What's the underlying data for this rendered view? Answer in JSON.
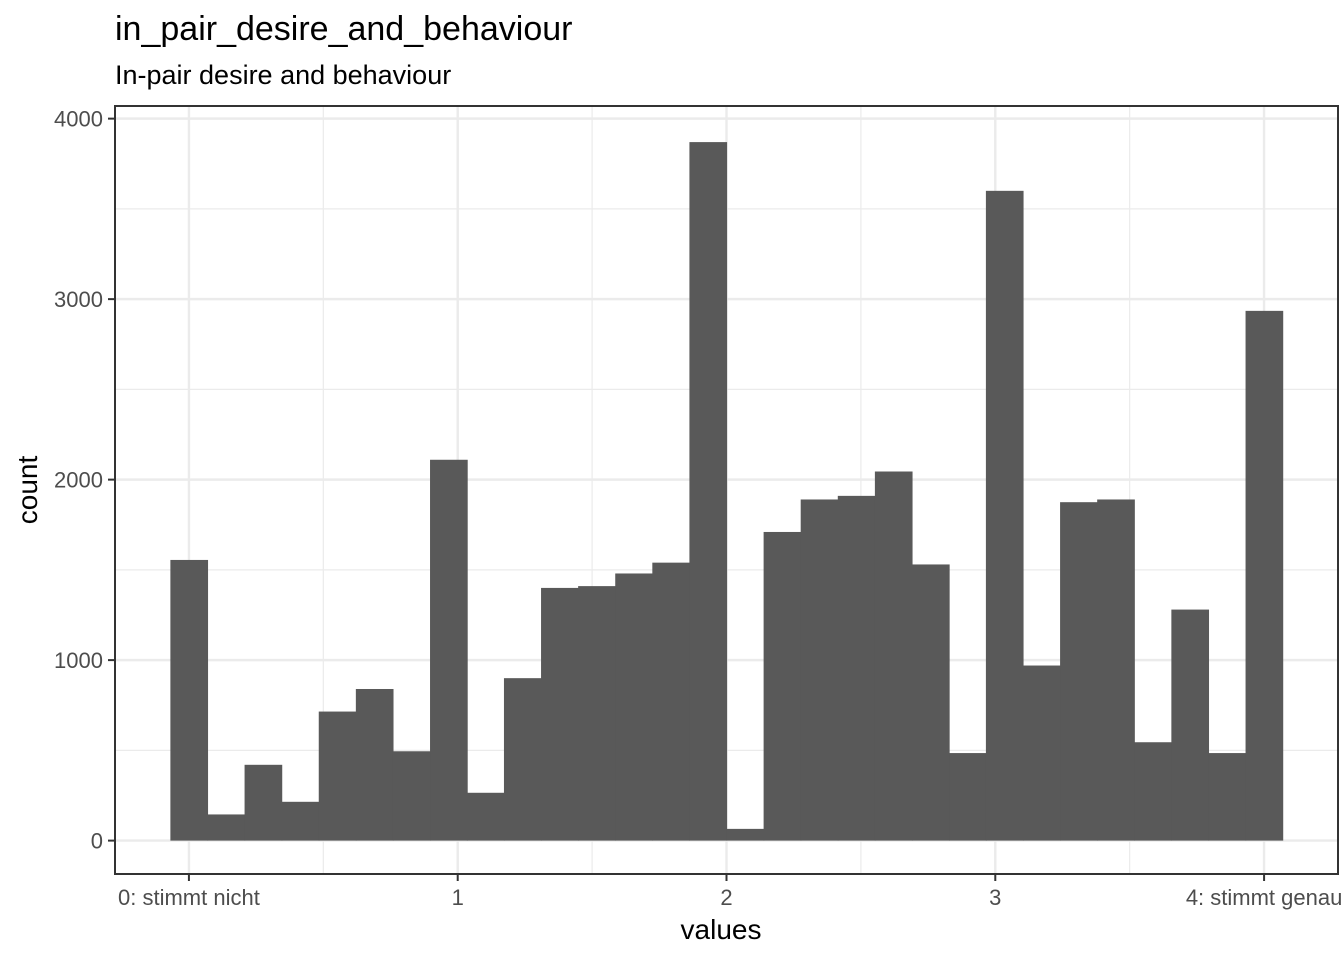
{
  "chart_data": {
    "type": "bar",
    "title": "in_pair_desire_and_behaviour",
    "subtitle": "In-pair desire and behaviour",
    "xlabel": "values",
    "ylabel": "count",
    "xlim": [
      -0.275,
      4.275
    ],
    "ylim": [
      -185,
      4070
    ],
    "x_ticks": [
      {
        "value": 0,
        "label": "0: stimmt nicht"
      },
      {
        "value": 1,
        "label": "1"
      },
      {
        "value": 2,
        "label": "2"
      },
      {
        "value": 3,
        "label": "3"
      },
      {
        "value": 4,
        "label": "4: stimmt genau"
      }
    ],
    "y_ticks": [
      {
        "value": 0,
        "label": "0"
      },
      {
        "value": 1000,
        "label": "1000"
      },
      {
        "value": 2000,
        "label": "2000"
      },
      {
        "value": 3000,
        "label": "3000"
      },
      {
        "value": 4000,
        "label": "4000"
      }
    ],
    "bin_width": 0.1379,
    "bins": [
      {
        "center": 0.0,
        "count": 1555
      },
      {
        "center": 0.138,
        "count": 145
      },
      {
        "center": 0.276,
        "count": 420
      },
      {
        "center": 0.414,
        "count": 215
      },
      {
        "center": 0.552,
        "count": 715
      },
      {
        "center": 0.69,
        "count": 840
      },
      {
        "center": 0.828,
        "count": 495
      },
      {
        "center": 0.966,
        "count": 2110
      },
      {
        "center": 1.103,
        "count": 265
      },
      {
        "center": 1.241,
        "count": 900
      },
      {
        "center": 1.379,
        "count": 1400
      },
      {
        "center": 1.517,
        "count": 1410
      },
      {
        "center": 1.655,
        "count": 1480
      },
      {
        "center": 1.793,
        "count": 1540
      },
      {
        "center": 1.931,
        "count": 3870
      },
      {
        "center": 2.069,
        "count": 65
      },
      {
        "center": 2.207,
        "count": 1710
      },
      {
        "center": 2.345,
        "count": 1890
      },
      {
        "center": 2.483,
        "count": 1910
      },
      {
        "center": 2.621,
        "count": 2045
      },
      {
        "center": 2.759,
        "count": 1530
      },
      {
        "center": 2.897,
        "count": 485
      },
      {
        "center": 3.034,
        "count": 3600
      },
      {
        "center": 3.172,
        "count": 970
      },
      {
        "center": 3.31,
        "count": 1875
      },
      {
        "center": 3.448,
        "count": 1890
      },
      {
        "center": 3.586,
        "count": 545
      },
      {
        "center": 3.724,
        "count": 1280
      },
      {
        "center": 3.862,
        "count": 485
      },
      {
        "center": 4.0,
        "count": 2935
      }
    ],
    "grid": true,
    "colors": {
      "bar": "#595959",
      "grid_major": "#ebebeb",
      "panel_border": "#333333",
      "tick_label": "#4d4d4d"
    }
  }
}
